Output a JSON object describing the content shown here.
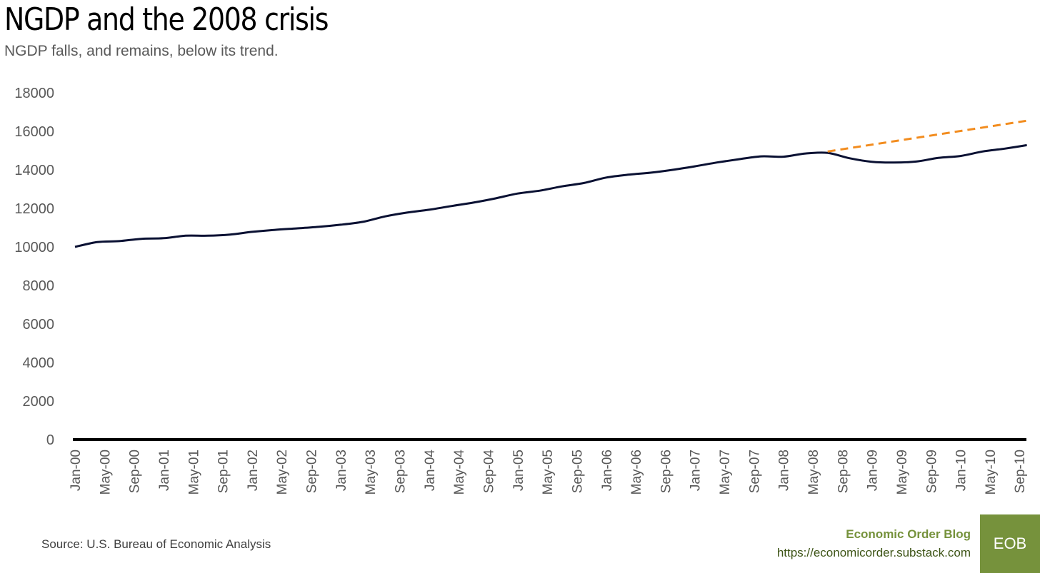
{
  "header": {
    "title": "NGDP and the 2008 crisis",
    "subtitle": "NGDP falls, and remains, below its trend."
  },
  "footer": {
    "source": "Source: U.S. Bureau of Economic Analysis",
    "brand_name": "Economic Order Blog",
    "brand_url": "https://economicorder.substack.com",
    "logo_text": "EOB"
  },
  "colors": {
    "ngdp_line": "#0a1133",
    "trend_line": "#f28c1e",
    "brand": "#76923c",
    "axis": "#000000",
    "tick_text": "#595959"
  },
  "chart_data": {
    "type": "line",
    "title": "NGDP and the 2008 crisis",
    "subtitle": "NGDP falls, and remains, below its trend.",
    "xlabel": "",
    "ylabel": "",
    "ylim": [
      0,
      18000
    ],
    "yticks": [
      0,
      2000,
      4000,
      6000,
      8000,
      10000,
      12000,
      14000,
      16000,
      18000
    ],
    "grid": false,
    "legend": "none",
    "x_tick_labels": [
      "Jan-00",
      "May-00",
      "Sep-00",
      "Jan-01",
      "May-01",
      "Sep-01",
      "Jan-02",
      "May-02",
      "Sep-02",
      "Jan-03",
      "May-03",
      "Sep-03",
      "Jan-04",
      "May-04",
      "Sep-04",
      "Jan-05",
      "May-05",
      "Sep-05",
      "Jan-06",
      "May-06",
      "Sep-06",
      "Jan-07",
      "May-07",
      "Sep-07",
      "Jan-08",
      "May-08",
      "Sep-08",
      "Jan-09",
      "May-09",
      "Sep-09",
      "Jan-10",
      "May-10",
      "Sep-10"
    ],
    "x": [
      "Jan-00",
      "Apr-00",
      "Jul-00",
      "Oct-00",
      "Jan-01",
      "Apr-01",
      "Jul-01",
      "Oct-01",
      "Jan-02",
      "Apr-02",
      "Jul-02",
      "Oct-02",
      "Jan-03",
      "Apr-03",
      "Jul-03",
      "Oct-03",
      "Jan-04",
      "Apr-04",
      "Jul-04",
      "Oct-04",
      "Jan-05",
      "Apr-05",
      "Jul-05",
      "Oct-05",
      "Jan-06",
      "Apr-06",
      "Jul-06",
      "Oct-06",
      "Jan-07",
      "Apr-07",
      "Jul-07",
      "Oct-07",
      "Jan-08",
      "Apr-08",
      "Jul-08",
      "Oct-08",
      "Jan-09",
      "Apr-09",
      "Jul-09",
      "Oct-09",
      "Jan-10",
      "Apr-10",
      "Jul-10",
      "Oct-10"
    ],
    "series": [
      {
        "values": [
          10000,
          10250,
          10300,
          10420,
          10450,
          10580,
          10580,
          10640,
          10780,
          10880,
          10960,
          11040,
          11150,
          11300,
          11580,
          11780,
          11930,
          12120,
          12300,
          12520,
          12770,
          12920,
          13140,
          13320,
          13600,
          13750,
          13850,
          14000,
          14180,
          14380,
          14550,
          14700,
          14680,
          14850,
          14880,
          14600,
          14420,
          14380,
          14430,
          14620,
          14720,
          14950,
          15100,
          15280
        ],
        "style": "solid"
      },
      {
        "x": [
          "Jul-08",
          "Oct-10"
        ],
        "values": [
          14950,
          16550
        ],
        "style": "dashed"
      }
    ]
  }
}
